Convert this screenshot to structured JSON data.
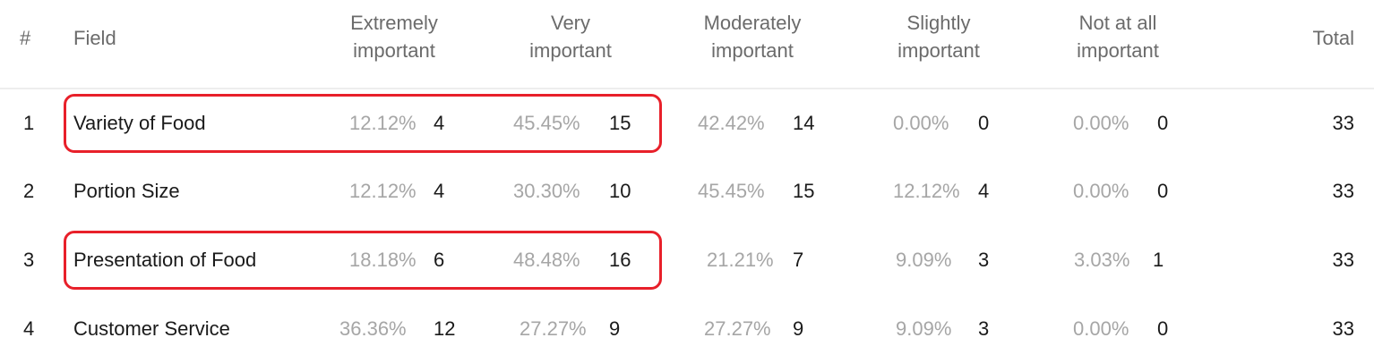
{
  "headers": {
    "index": "#",
    "field": "Field",
    "col1": [
      "Extremely",
      "important"
    ],
    "col2": [
      "Very",
      "important"
    ],
    "col3": [
      "Moderately",
      "important"
    ],
    "col4": [
      "Slightly",
      "important"
    ],
    "col5": [
      "Not at all",
      "important"
    ],
    "total": "Total"
  },
  "rows": [
    {
      "num": "1",
      "field": "Variety of Food",
      "cells": [
        [
          "12.12%",
          "4"
        ],
        [
          "45.45%",
          "15"
        ],
        [
          "42.42%",
          "14"
        ],
        [
          "0.00%",
          "0"
        ],
        [
          "0.00%",
          "0"
        ]
      ],
      "total": "33"
    },
    {
      "num": "2",
      "field": "Portion Size",
      "cells": [
        [
          "12.12%",
          "4"
        ],
        [
          "30.30%",
          "10"
        ],
        [
          "45.45%",
          "15"
        ],
        [
          "12.12%",
          "4"
        ],
        [
          "0.00%",
          "0"
        ]
      ],
      "total": "33"
    },
    {
      "num": "3",
      "field": "Presentation of Food",
      "cells": [
        [
          "18.18%",
          "6"
        ],
        [
          "48.48%",
          "16"
        ],
        [
          "21.21%",
          "7"
        ],
        [
          "9.09%",
          "3"
        ],
        [
          "3.03%",
          "1"
        ]
      ],
      "total": "33"
    },
    {
      "num": "4",
      "field": "Customer Service",
      "cells": [
        [
          "36.36%",
          "12"
        ],
        [
          "27.27%",
          "9"
        ],
        [
          "27.27%",
          "9"
        ],
        [
          "9.09%",
          "3"
        ],
        [
          "0.00%",
          "0"
        ]
      ],
      "total": "33"
    }
  ],
  "highlight_color": "#e8202a"
}
